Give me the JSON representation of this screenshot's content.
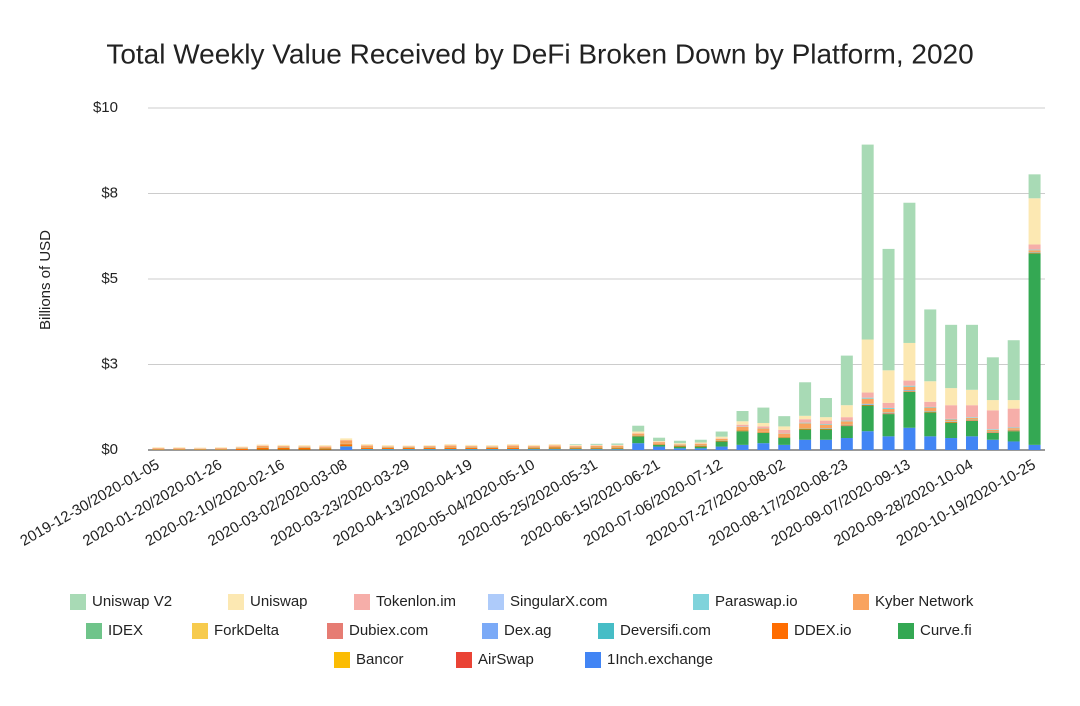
{
  "chart_data": {
    "type": "stacked_bar",
    "title": "Total Weekly Value Received by DeFi Broken Down by Platform, 2020",
    "y_label": "Billions of USD",
    "categories": [
      "2019-12-30/2020-01-05",
      null,
      null,
      "2020-01-20/2020-01-26",
      null,
      null,
      "2020-02-10/2020-02-16",
      null,
      null,
      "2020-03-02/2020-03-08",
      null,
      null,
      "2020-03-23/2020-03-29",
      null,
      null,
      "2020-04-13/2020-04-19",
      null,
      null,
      "2020-05-04/2020-05-10",
      null,
      null,
      "2020-05-25/2020-05-31",
      null,
      null,
      "2020-06-15/2020-06-21",
      null,
      null,
      "2020-07-06/2020-07-12",
      null,
      null,
      "2020-07-27/2020-08-02",
      null,
      null,
      "2020-08-17/2020-08-23",
      null,
      null,
      "2020-09-07/2020-09-13",
      null,
      null,
      "2020-09-28/2020-10-04",
      null,
      null,
      "2020-10-19/2020-10-25"
    ],
    "ylim": [
      0,
      10
    ],
    "yticks": [
      {
        "value": 0,
        "label": "$0"
      },
      {
        "value": 2.5,
        "label": "$3"
      },
      {
        "value": 5,
        "label": "$5"
      },
      {
        "value": 7.5,
        "label": "$8"
      },
      {
        "value": 10,
        "label": "$10"
      }
    ],
    "grid": true,
    "legend": "bottom",
    "series": [
      {
        "name": "Uniswap V2",
        "color": "#a8dab5",
        "values": [
          0,
          0,
          0,
          0,
          0,
          0,
          0,
          0,
          0,
          0,
          0,
          0,
          0,
          0,
          0,
          0,
          0,
          0,
          0,
          0,
          0.02,
          0.03,
          0.04,
          0.17,
          0.1,
          0.07,
          0.08,
          0.15,
          0.3,
          0.45,
          0.3,
          0.98,
          0.56,
          1.45,
          5.7,
          3.55,
          4.1,
          2.1,
          1.85,
          1.9,
          1.25,
          1.75,
          0.7
        ]
      },
      {
        "name": "Uniswap",
        "color": "#fce8b2",
        "values": [
          0.02,
          0.02,
          0.02,
          0.02,
          0.02,
          0.03,
          0.03,
          0.03,
          0.03,
          0.05,
          0.03,
          0.03,
          0.02,
          0.02,
          0.03,
          0.03,
          0.03,
          0.03,
          0.03,
          0.03,
          0.03,
          0.02,
          0.02,
          0.05,
          0.02,
          0.03,
          0.03,
          0.05,
          0.1,
          0.1,
          0.1,
          0.1,
          0.1,
          0.35,
          1.55,
          0.95,
          1.1,
          0.6,
          0.5,
          0.45,
          0.3,
          0.25,
          1.35
        ]
      },
      {
        "name": "Tokenlon.im",
        "color": "#f6aea9",
        "values": [
          0.01,
          0.01,
          0.01,
          0.01,
          0.01,
          0.01,
          0.01,
          0.01,
          0.01,
          0.01,
          0.01,
          0.01,
          0.01,
          0.01,
          0.01,
          0.01,
          0.01,
          0.01,
          0.01,
          0.01,
          0.01,
          0.01,
          0.01,
          0.01,
          0.01,
          0.01,
          0.01,
          0.01,
          0.05,
          0.05,
          0.1,
          0.1,
          0.1,
          0.1,
          0.15,
          0.15,
          0.15,
          0.15,
          0.4,
          0.35,
          0.55,
          0.55,
          0.15
        ]
      },
      {
        "name": "SingularX.com",
        "color": "#aecbfa",
        "values": [
          0,
          0,
          0,
          0,
          0,
          0,
          0,
          0,
          0,
          0,
          0,
          0,
          0,
          0,
          0,
          0,
          0,
          0,
          0,
          0,
          0,
          0,
          0,
          0,
          0,
          0,
          0,
          0,
          0,
          0,
          0,
          0,
          0,
          0,
          0,
          0,
          0,
          0,
          0,
          0,
          0,
          0,
          0
        ]
      },
      {
        "name": "Paraswap.io",
        "color": "#7fd3db",
        "values": [
          0,
          0,
          0,
          0,
          0,
          0,
          0,
          0,
          0,
          0,
          0,
          0,
          0,
          0,
          0,
          0,
          0,
          0,
          0,
          0,
          0,
          0,
          0,
          0,
          0,
          0,
          0,
          0,
          0.01,
          0.01,
          0.01,
          0.02,
          0.02,
          0.02,
          0.03,
          0.03,
          0.03,
          0.02,
          0.02,
          0.02,
          0.02,
          0.02,
          0.02
        ]
      },
      {
        "name": "Kyber Network",
        "color": "#f9a35f",
        "values": [
          0.02,
          0.02,
          0.01,
          0.02,
          0.03,
          0.04,
          0.04,
          0.03,
          0.04,
          0.1,
          0.05,
          0.03,
          0.03,
          0.04,
          0.05,
          0.04,
          0.03,
          0.05,
          0.03,
          0.04,
          0.03,
          0.04,
          0.04,
          0.05,
          0.05,
          0.03,
          0.05,
          0.05,
          0.1,
          0.1,
          0.1,
          0.15,
          0.1,
          0.1,
          0.15,
          0.1,
          0.1,
          0.1,
          0.05,
          0.05,
          0.05,
          0.05,
          0.05
        ]
      },
      {
        "name": "IDEX",
        "color": "#6fc48a",
        "values": [
          0.01,
          0.01,
          0.01,
          0.01,
          0.01,
          0.01,
          0.01,
          0.01,
          0.01,
          0.01,
          0.01,
          0.01,
          0.01,
          0.01,
          0.01,
          0.01,
          0.01,
          0.01,
          0.01,
          0.01,
          0.01,
          0.01,
          0.01,
          0.01,
          0.01,
          0.01,
          0.01,
          0.01,
          0.01,
          0.01,
          0.01,
          0.01,
          0.01,
          0.01,
          0.01,
          0.01,
          0.01,
          0.01,
          0.01,
          0.01,
          0.01,
          0.01,
          0.01
        ]
      },
      {
        "name": "ForkDelta",
        "color": "#f7cb4d",
        "values": [
          0,
          0,
          0,
          0,
          0,
          0,
          0,
          0,
          0,
          0,
          0,
          0,
          0,
          0,
          0,
          0,
          0,
          0,
          0,
          0,
          0,
          0,
          0,
          0,
          0,
          0,
          0,
          0,
          0,
          0,
          0,
          0,
          0,
          0,
          0,
          0,
          0,
          0,
          0,
          0,
          0,
          0,
          0
        ]
      },
      {
        "name": "Dubiex.com",
        "color": "#e67c73",
        "values": [
          0,
          0,
          0,
          0,
          0,
          0,
          0,
          0,
          0,
          0,
          0,
          0,
          0,
          0,
          0,
          0,
          0,
          0,
          0,
          0,
          0,
          0,
          0,
          0,
          0,
          0,
          0,
          0,
          0,
          0,
          0,
          0,
          0,
          0,
          0,
          0,
          0,
          0,
          0,
          0,
          0,
          0,
          0
        ]
      },
      {
        "name": "Dex.ag",
        "color": "#7baaf7",
        "values": [
          0,
          0,
          0,
          0,
          0,
          0,
          0,
          0,
          0,
          0,
          0,
          0,
          0,
          0,
          0,
          0,
          0,
          0,
          0,
          0,
          0,
          0,
          0,
          0,
          0,
          0,
          0,
          0,
          0,
          0,
          0,
          0,
          0.01,
          0.01,
          0.02,
          0.02,
          0.02,
          0.01,
          0.01,
          0.01,
          0.01,
          0.01,
          0.01
        ]
      },
      {
        "name": "Deversifi.com",
        "color": "#46bdc6",
        "values": [
          0,
          0,
          0,
          0,
          0,
          0,
          0,
          0,
          0,
          0,
          0,
          0,
          0,
          0,
          0,
          0,
          0,
          0,
          0,
          0,
          0,
          0,
          0,
          0,
          0,
          0,
          0,
          0,
          0,
          0,
          0,
          0,
          0,
          0,
          0,
          0,
          0,
          0,
          0,
          0,
          0,
          0,
          0
        ]
      },
      {
        "name": "DDEX.io",
        "color": "#ff6d01",
        "values": [
          0.02,
          0.02,
          0.02,
          0.02,
          0.03,
          0.06,
          0.05,
          0.05,
          0.04,
          0.06,
          0.04,
          0.03,
          0.03,
          0.03,
          0.04,
          0.03,
          0.03,
          0.04,
          0.03,
          0.04,
          0.03,
          0.03,
          0.03,
          0.02,
          0.02,
          0.02,
          0.02,
          0.02,
          0.02,
          0.02,
          0.02,
          0.02,
          0.02,
          0.02,
          0.02,
          0.02,
          0.02,
          0.02,
          0.02,
          0.02,
          0.02,
          0.02,
          0.02
        ]
      },
      {
        "name": "Curve.fi",
        "color": "#34a853",
        "values": [
          0,
          0,
          0,
          0,
          0,
          0.01,
          0.01,
          0.01,
          0.01,
          0.01,
          0.01,
          0.01,
          0.01,
          0.01,
          0.01,
          0.01,
          0.01,
          0.01,
          0.02,
          0.02,
          0.02,
          0.02,
          0.02,
          0.2,
          0.05,
          0.05,
          0.05,
          0.15,
          0.4,
          0.3,
          0.2,
          0.3,
          0.3,
          0.35,
          0.75,
          0.65,
          1.05,
          0.7,
          0.45,
          0.45,
          0.2,
          0.3,
          5.6
        ]
      },
      {
        "name": "Bancor",
        "color": "#fbbc04",
        "values": [
          0,
          0,
          0,
          0,
          0,
          0,
          0,
          0,
          0,
          0,
          0,
          0,
          0,
          0,
          0,
          0,
          0,
          0,
          0,
          0,
          0,
          0,
          0,
          0,
          0,
          0,
          0,
          0,
          0,
          0,
          0,
          0,
          0,
          0,
          0,
          0,
          0,
          0,
          0,
          0,
          0,
          0,
          0
        ]
      },
      {
        "name": "AirSwap",
        "color": "#ea4335",
        "values": [
          0,
          0,
          0,
          0,
          0,
          0,
          0,
          0,
          0,
          0,
          0,
          0,
          0,
          0,
          0,
          0,
          0,
          0,
          0,
          0,
          0,
          0,
          0,
          0,
          0,
          0,
          0,
          0,
          0,
          0,
          0,
          0,
          0,
          0,
          0,
          0,
          0,
          0,
          0,
          0,
          0,
          0,
          0
        ]
      },
      {
        "name": "1Inch.exchange",
        "color": "#4285f4",
        "values": [
          0,
          0,
          0,
          0,
          0,
          0,
          0,
          0,
          0,
          0.1,
          0.02,
          0.02,
          0.02,
          0.02,
          0.02,
          0.02,
          0.02,
          0.02,
          0.02,
          0.02,
          0.02,
          0.02,
          0.02,
          0.2,
          0.1,
          0.05,
          0.05,
          0.1,
          0.15,
          0.2,
          0.15,
          0.3,
          0.3,
          0.35,
          0.55,
          0.4,
          0.65,
          0.4,
          0.35,
          0.4,
          0.3,
          0.25,
          0.15
        ]
      }
    ]
  }
}
